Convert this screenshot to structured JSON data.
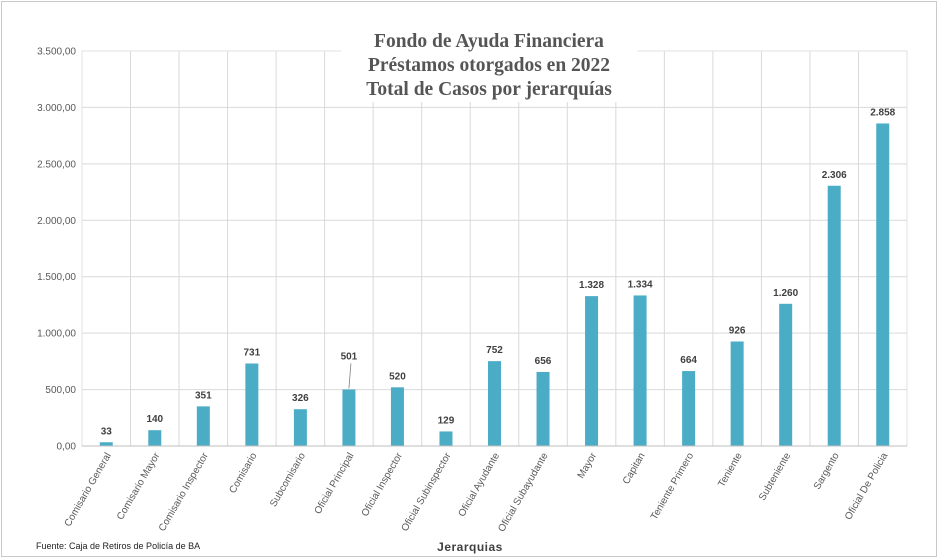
{
  "colors": {
    "bar": "#4bacc6",
    "grid": "#d9d9d9",
    "axis_text": "#595959",
    "label_text": "#404040"
  },
  "source_note": "Fuente: Caja de Retiros de Policía de BA",
  "chart_data": {
    "type": "bar",
    "title_lines": [
      "Fondo de Ayuda Financiera",
      "Préstamos otorgados en 2022",
      "Total de Casos por jerarquías"
    ],
    "xlabel": "Jerarquias",
    "ylabel": "",
    "ylim": [
      0,
      3500
    ],
    "yticks": [
      "0,00",
      "500,00",
      "1.000,00",
      "1.500,00",
      "2.000,00",
      "2.500,00",
      "3.000,00",
      "3.500,00"
    ],
    "grid": true,
    "categories": [
      "Comisario General",
      "Comisario Mayor",
      "Comisario Inspector",
      "Comisario",
      "Subcomisario",
      "Oficial Principal",
      "Oficial Inspector",
      "Oficial Subinspector",
      "Oficial Ayudante",
      "Oficial Subayudante",
      "Mayor",
      "Capitan",
      "Teniente Primero",
      "Teniente",
      "Subteniente",
      "Sargento",
      "Oficial De Policia"
    ],
    "values": [
      33,
      140,
      351,
      731,
      326,
      501,
      520,
      129,
      752,
      656,
      1328,
      1334,
      664,
      926,
      1260,
      2306,
      2858
    ],
    "data_labels": [
      "33",
      "140",
      "351",
      "731",
      "326",
      "501",
      "520",
      "129",
      "752",
      "656",
      "1.328",
      "1.334",
      "664",
      "926",
      "1.260",
      "2.306",
      "2.858"
    ]
  }
}
